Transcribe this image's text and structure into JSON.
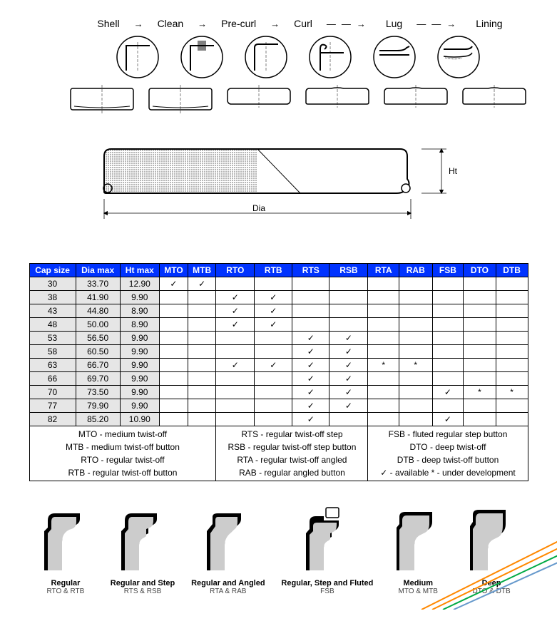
{
  "process_steps": [
    "Shell",
    "Clean",
    "Pre-curl",
    "Curl",
    "Lug",
    "Lining"
  ],
  "dim_labels": {
    "height": "Ht",
    "diameter": "Dia"
  },
  "table": {
    "headers": [
      "Cap size",
      "Dia max",
      "Ht max",
      "MTO",
      "MTB",
      "RTO",
      "RTB",
      "RTS",
      "RSB",
      "RTA",
      "RAB",
      "FSB",
      "DTO",
      "DTB"
    ],
    "rows": [
      {
        "cap": "30",
        "dia": "33.70",
        "ht": "12.90",
        "marks": {
          "MTO": "c",
          "MTB": "c"
        }
      },
      {
        "cap": "38",
        "dia": "41.90",
        "ht": "9.90",
        "marks": {
          "RTO": "c",
          "RTB": "c"
        }
      },
      {
        "cap": "43",
        "dia": "44.80",
        "ht": "8.90",
        "marks": {
          "RTO": "c",
          "RTB": "c"
        }
      },
      {
        "cap": "48",
        "dia": "50.00",
        "ht": "8.90",
        "marks": {
          "RTO": "c",
          "RTB": "c"
        }
      },
      {
        "cap": "53",
        "dia": "56.50",
        "ht": "9.90",
        "marks": {
          "RTS": "c",
          "RSB": "c"
        }
      },
      {
        "cap": "58",
        "dia": "60.50",
        "ht": "9.90",
        "marks": {
          "RTS": "c",
          "RSB": "c"
        }
      },
      {
        "cap": "63",
        "dia": "66.70",
        "ht": "9.90",
        "marks": {
          "RTO": "c",
          "RTB": "c",
          "RTS": "c",
          "RSB": "c",
          "RTA": "s",
          "RAB": "s"
        }
      },
      {
        "cap": "66",
        "dia": "69.70",
        "ht": "9.90",
        "marks": {
          "RTS": "c",
          "RSB": "c"
        }
      },
      {
        "cap": "70",
        "dia": "73.50",
        "ht": "9.90",
        "marks": {
          "RTS": "c",
          "RSB": "c",
          "FSB": "c",
          "DTO": "s",
          "DTB": "s"
        }
      },
      {
        "cap": "77",
        "dia": "79.90",
        "ht": "9.90",
        "marks": {
          "RTS": "c",
          "RSB": "c"
        }
      },
      {
        "cap": "82",
        "dia": "85.20",
        "ht": "10.90",
        "marks": {
          "RTS": "c",
          "FSB": "c"
        }
      }
    ]
  },
  "legend": {
    "col1": [
      "MTO - medium twist-off",
      "MTB - medium twist-off button",
      "RTO - regular twist-off",
      "RTB - regular twist-off button"
    ],
    "col2": [
      "RTS - regular twist-off step",
      "RSB - regular twist-off step button",
      "RTA - regular twist-off angled",
      "RAB - regular angled button"
    ],
    "col3": [
      "FSB - fluted regular step button",
      "DTO - deep twist-off",
      "DTB - deep twist-off button",
      "✓   -  available       *  -  under development"
    ]
  },
  "profiles": [
    {
      "title": "Regular",
      "sub": "RTO & RTB"
    },
    {
      "title": "Regular and Step",
      "sub": "RTS & RSB"
    },
    {
      "title": "Regular and Angled",
      "sub": "RTA & RAB"
    },
    {
      "title": "Regular, Step and Fluted",
      "sub": "FSB"
    },
    {
      "title": "Medium",
      "sub": "MTO & MTB"
    },
    {
      "title": "Deep",
      "sub": "DTO & DTB"
    }
  ],
  "colors": {
    "header_bg": "#0033ff",
    "header_fg": "#ffffff",
    "shade": "#e6e6e6",
    "swoosh": [
      "#ff8800",
      "#ff8800",
      "#00aa44",
      "#6699cc"
    ]
  }
}
